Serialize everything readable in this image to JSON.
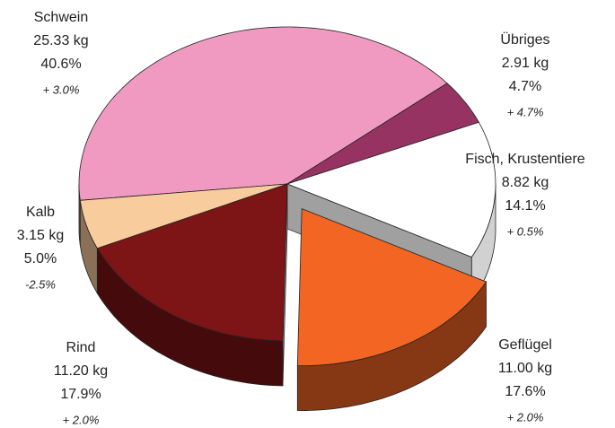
{
  "chart_data": {
    "type": "pie",
    "categories": [
      "Schwein",
      "Übriges",
      "Fisch, Krustentiere",
      "Geflügel",
      "Rind",
      "Kalb"
    ],
    "values": [
      25.33,
      2.91,
      8.82,
      11.0,
      11.2,
      3.15
    ],
    "value_labels": [
      "25.33 kg",
      "2.91 kg",
      "8.82 kg",
      "11.00 kg",
      "11.20 kg",
      "3.15 kg"
    ],
    "shares": [
      40.6,
      4.7,
      14.1,
      17.6,
      17.9,
      5.0
    ],
    "share_labels": [
      "40.6%",
      "4.7%",
      "14.1%",
      "17.6%",
      "17.9%",
      "5.0%"
    ],
    "changes": [
      3.0,
      4.7,
      0.5,
      2.0,
      2.0,
      -2.5
    ],
    "change_labels": [
      "+ 3.0%",
      "+ 4.7%",
      "+ 0.5%",
      "+ 2.0%",
      "+ 2.0%",
      "-2.5%"
    ],
    "colors": [
      "#f19ac1",
      "#973363",
      "#ffffff",
      "#f26522",
      "#7d1416",
      "#f9cc9d"
    ],
    "exploded": [
      false,
      false,
      false,
      true,
      false,
      false
    ]
  }
}
